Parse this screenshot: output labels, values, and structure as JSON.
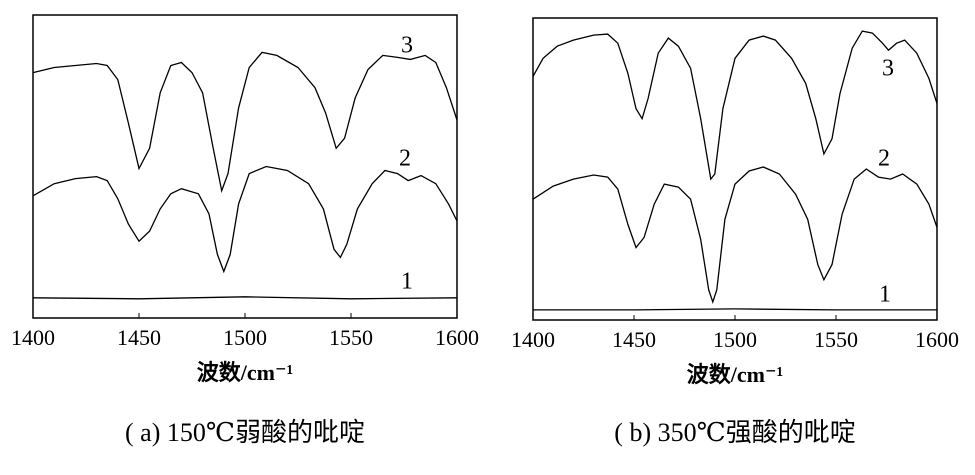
{
  "chart_data": [
    {
      "type": "line",
      "caption": "( a) 150℃弱酸的吡啶",
      "x_label": "波数/cm⁻¹",
      "xlim": [
        1400,
        1600
      ],
      "xticks": [
        1400,
        1450,
        1500,
        1550,
        1600
      ],
      "ylim": [
        0,
        300
      ],
      "series": [
        {
          "name": "3",
          "color": "#000000",
          "x": [
            1400,
            1410,
            1420,
            1430,
            1435,
            1440,
            1445,
            1450,
            1455,
            1460,
            1465,
            1470,
            1475,
            1480,
            1485,
            1489,
            1492,
            1497,
            1502,
            1508,
            1515,
            1525,
            1533,
            1538,
            1543,
            1547,
            1552,
            1558,
            1565,
            1572,
            1578,
            1585,
            1590,
            1595,
            1600
          ],
          "values": [
            243,
            248,
            250,
            252,
            250,
            236,
            193,
            148,
            168,
            223,
            250,
            253,
            243,
            223,
            168,
            126,
            143,
            208,
            248,
            263,
            260,
            248,
            228,
            203,
            168,
            178,
            218,
            246,
            260,
            258,
            256,
            260,
            253,
            228,
            196
          ]
        },
        {
          "name": "2",
          "color": "#000000",
          "x": [
            1400,
            1410,
            1420,
            1430,
            1435,
            1440,
            1445,
            1450,
            1455,
            1460,
            1465,
            1470,
            1478,
            1483,
            1487,
            1490,
            1493,
            1497,
            1502,
            1510,
            1520,
            1530,
            1537,
            1542,
            1545,
            1548,
            1553,
            1560,
            1566,
            1572,
            1577,
            1583,
            1590,
            1596,
            1600
          ],
          "values": [
            121,
            133,
            138,
            140,
            136,
            118,
            93,
            76,
            86,
            108,
            123,
            128,
            123,
            103,
            63,
            46,
            63,
            113,
            143,
            150,
            146,
            133,
            108,
            68,
            60,
            73,
            108,
            133,
            146,
            143,
            136,
            141,
            133,
            113,
            96
          ]
        },
        {
          "name": "1",
          "color": "#000000",
          "x": [
            1400,
            1450,
            1500,
            1550,
            1600
          ],
          "values": [
            20,
            19,
            21,
            19,
            20
          ]
        }
      ]
    },
    {
      "type": "line",
      "caption": "( b) 350℃强酸的吡啶",
      "x_label": "波数/cm⁻¹",
      "xlim": [
        1400,
        1600
      ],
      "xticks": [
        1400,
        1450,
        1500,
        1550,
        1600
      ],
      "ylim": [
        0,
        300
      ],
      "series": [
        {
          "name": "3",
          "color": "#000000",
          "x": [
            1400,
            1405,
            1412,
            1420,
            1430,
            1437,
            1442,
            1447,
            1451,
            1454,
            1457,
            1462,
            1467,
            1472,
            1478,
            1483,
            1488,
            1490,
            1494,
            1500,
            1507,
            1514,
            1520,
            1528,
            1535,
            1540,
            1544,
            1548,
            1552,
            1558,
            1563,
            1568,
            1573,
            1576,
            1580,
            1584,
            1590,
            1596,
            1600
          ],
          "values": [
            242,
            260,
            272,
            278,
            283,
            284,
            275,
            245,
            210,
            200,
            220,
            265,
            280,
            272,
            250,
            200,
            140,
            145,
            210,
            260,
            278,
            282,
            278,
            260,
            235,
            200,
            165,
            180,
            225,
            270,
            287,
            285,
            275,
            268,
            275,
            278,
            265,
            240,
            215
          ]
        },
        {
          "name": "2",
          "color": "#000000",
          "x": [
            1400,
            1410,
            1420,
            1430,
            1437,
            1442,
            1447,
            1451,
            1455,
            1460,
            1465,
            1472,
            1478,
            1483,
            1487,
            1489,
            1491,
            1495,
            1500,
            1507,
            1514,
            1522,
            1530,
            1536,
            1541,
            1544,
            1548,
            1553,
            1559,
            1565,
            1571,
            1577,
            1583,
            1590,
            1596,
            1600
          ],
          "values": [
            120,
            133,
            140,
            144,
            142,
            130,
            95,
            72,
            82,
            115,
            135,
            132,
            120,
            80,
            30,
            18,
            30,
            100,
            135,
            148,
            152,
            145,
            125,
            100,
            55,
            40,
            55,
            105,
            140,
            150,
            142,
            140,
            145,
            135,
            115,
            92
          ]
        },
        {
          "name": "1",
          "color": "#000000",
          "x": [
            1400,
            1450,
            1500,
            1550,
            1600
          ],
          "values": [
            10,
            10,
            11,
            10,
            10
          ]
        }
      ]
    }
  ]
}
